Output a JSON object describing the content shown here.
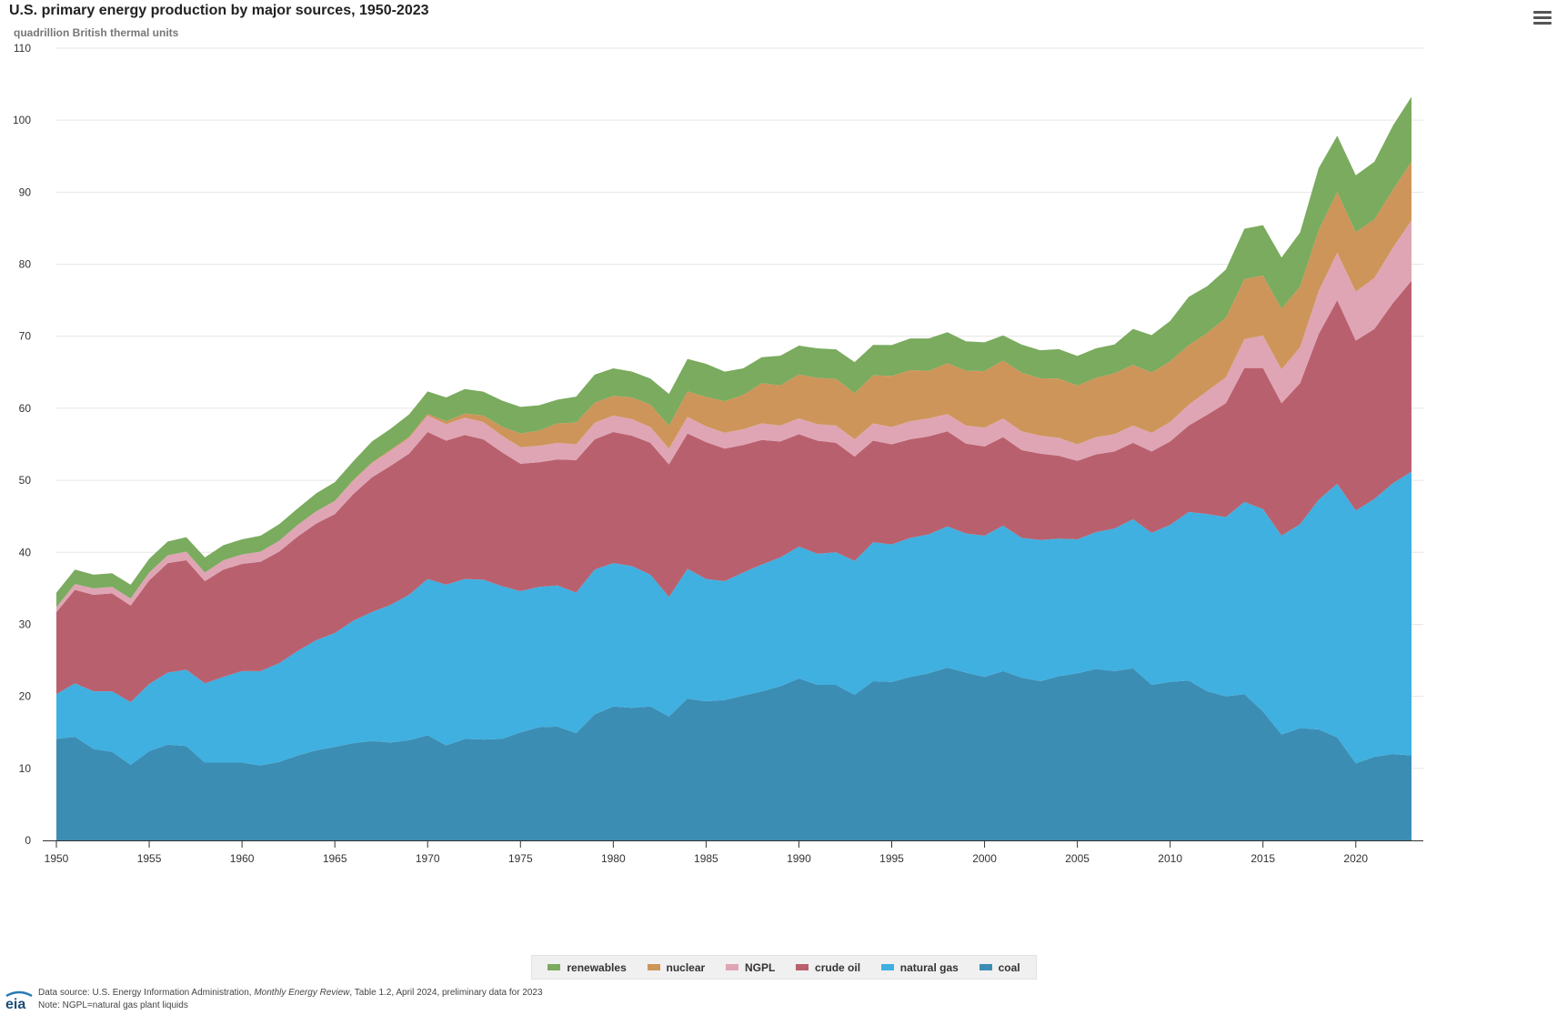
{
  "header": {
    "title": "U.S. primary energy production by major sources, 1950-2023",
    "subtitle": "quadrillion British thermal units",
    "menu_icon": "hamburger-menu-icon"
  },
  "footer": {
    "source_prefix": "Data source: U.S. Energy Information Administration, ",
    "source_italic": "Monthly Energy Review",
    "source_suffix": ", Table 1.2, April 2024, preliminary data for 2023",
    "note": "Note: NGPL=natural gas plant liquids",
    "logo_text": "eia"
  },
  "chart_data": {
    "type": "area",
    "stacked": true,
    "title": "U.S. primary energy production by major sources, 1950-2023",
    "ylabel": "quadrillion British thermal units",
    "ylim": [
      0,
      110
    ],
    "yticks": [
      0,
      10,
      20,
      30,
      40,
      50,
      60,
      70,
      80,
      90,
      100,
      110
    ],
    "xlim": [
      1950,
      2023
    ],
    "xticks": [
      1950,
      1955,
      1960,
      1965,
      1970,
      1975,
      1980,
      1985,
      1990,
      1995,
      2000,
      2005,
      2010,
      2015,
      2020
    ],
    "grid": "horizontal",
    "legend_position": "bottom-center",
    "x": [
      1950,
      1951,
      1952,
      1953,
      1954,
      1955,
      1956,
      1957,
      1958,
      1959,
      1960,
      1961,
      1962,
      1963,
      1964,
      1965,
      1966,
      1967,
      1968,
      1969,
      1970,
      1971,
      1972,
      1973,
      1974,
      1975,
      1976,
      1977,
      1978,
      1979,
      1980,
      1981,
      1982,
      1983,
      1984,
      1985,
      1986,
      1987,
      1988,
      1989,
      1990,
      1991,
      1992,
      1993,
      1994,
      1995,
      1996,
      1997,
      1998,
      1999,
      2000,
      2001,
      2002,
      2003,
      2004,
      2005,
      2006,
      2007,
      2008,
      2009,
      2010,
      2011,
      2012,
      2013,
      2014,
      2015,
      2016,
      2017,
      2018,
      2019,
      2020,
      2021,
      2022,
      2023
    ],
    "series": [
      {
        "name": "coal",
        "color": "#3c8db4",
        "values": [
          14.1,
          14.4,
          12.7,
          12.3,
          10.5,
          12.4,
          13.3,
          13.1,
          10.8,
          10.8,
          10.8,
          10.4,
          10.9,
          11.8,
          12.5,
          13.0,
          13.5,
          13.8,
          13.6,
          13.9,
          14.6,
          13.2,
          14.1,
          14.0,
          14.1,
          15.0,
          15.7,
          15.8,
          14.9,
          17.5,
          18.6,
          18.4,
          18.6,
          17.2,
          19.7,
          19.3,
          19.5,
          20.1,
          20.7,
          21.4,
          22.5,
          21.6,
          21.6,
          20.2,
          22.1,
          22.0,
          22.7,
          23.2,
          24.0,
          23.3,
          22.7,
          23.5,
          22.6,
          22.1,
          22.8,
          23.2,
          23.8,
          23.5,
          23.9,
          21.6,
          22.0,
          22.2,
          20.7,
          20.0,
          20.3,
          17.9,
          14.7,
          15.6,
          15.4,
          14.3,
          10.7,
          11.6,
          12.0,
          11.8
        ]
      },
      {
        "name": "natural gas",
        "color": "#3fb0e0",
        "values": [
          6.2,
          7.4,
          8.0,
          8.4,
          8.7,
          9.3,
          10.0,
          10.6,
          11.0,
          11.9,
          12.7,
          13.1,
          13.7,
          14.5,
          15.3,
          15.8,
          17.0,
          17.9,
          19.1,
          20.2,
          21.7,
          22.3,
          22.2,
          22.2,
          21.2,
          19.6,
          19.5,
          19.6,
          19.5,
          20.1,
          19.9,
          19.7,
          18.3,
          16.6,
          18.0,
          17.0,
          16.5,
          17.1,
          17.6,
          17.9,
          18.3,
          18.2,
          18.4,
          18.6,
          19.3,
          19.1,
          19.3,
          19.3,
          19.6,
          19.3,
          19.6,
          20.2,
          19.4,
          19.6,
          19.1,
          18.6,
          19.0,
          19.8,
          20.7,
          21.1,
          21.8,
          23.4,
          24.6,
          24.9,
          26.7,
          28.1,
          27.6,
          28.3,
          31.9,
          35.2,
          35.1,
          35.8,
          37.6,
          39.4
        ]
      },
      {
        "name": "crude oil",
        "color": "#b9606e",
        "values": [
          11.4,
          13.0,
          13.4,
          13.6,
          13.4,
          14.4,
          15.2,
          15.2,
          14.2,
          14.9,
          14.9,
          15.2,
          15.5,
          15.9,
          16.2,
          16.5,
          17.6,
          18.7,
          19.3,
          19.6,
          20.4,
          20.0,
          20.0,
          19.5,
          18.6,
          17.7,
          17.3,
          17.5,
          18.4,
          18.1,
          18.2,
          18.1,
          18.3,
          18.4,
          18.8,
          19.0,
          18.4,
          17.7,
          17.3,
          16.1,
          15.6,
          15.7,
          15.2,
          14.5,
          14.1,
          13.9,
          13.7,
          13.6,
          13.2,
          12.5,
          12.4,
          12.3,
          12.2,
          12.0,
          11.5,
          10.9,
          10.8,
          10.7,
          10.6,
          11.3,
          11.6,
          12.0,
          13.8,
          15.8,
          18.6,
          19.6,
          18.4,
          19.6,
          23.0,
          25.5,
          23.6,
          23.6,
          25.0,
          26.5
        ]
      },
      {
        "name": "NGPL",
        "color": "#dfa5b4",
        "values": [
          0.7,
          0.8,
          0.9,
          0.9,
          1.0,
          1.1,
          1.1,
          1.2,
          1.2,
          1.3,
          1.3,
          1.4,
          1.5,
          1.6,
          1.7,
          1.8,
          1.9,
          2.0,
          2.1,
          2.2,
          2.3,
          2.3,
          2.4,
          2.4,
          2.3,
          2.3,
          2.3,
          2.3,
          2.2,
          2.3,
          2.3,
          2.3,
          2.2,
          2.2,
          2.3,
          2.2,
          2.2,
          2.2,
          2.3,
          2.2,
          2.2,
          2.3,
          2.4,
          2.4,
          2.4,
          2.4,
          2.5,
          2.5,
          2.4,
          2.5,
          2.6,
          2.6,
          2.6,
          2.5,
          2.5,
          2.3,
          2.4,
          2.4,
          2.4,
          2.6,
          2.7,
          2.9,
          3.3,
          3.6,
          4.0,
          4.5,
          4.7,
          5.0,
          6.0,
          6.6,
          6.8,
          7.1,
          7.7,
          8.4
        ]
      },
      {
        "name": "nuclear",
        "color": "#cd9559",
        "values": [
          0.0,
          0.0,
          0.0,
          0.0,
          0.0,
          0.0,
          0.0,
          0.0,
          0.0,
          0.0,
          0.0,
          0.0,
          0.0,
          0.0,
          0.0,
          0.04,
          0.06,
          0.09,
          0.14,
          0.15,
          0.24,
          0.41,
          0.58,
          0.91,
          1.27,
          1.9,
          2.11,
          2.7,
          3.02,
          2.78,
          2.74,
          3.01,
          3.13,
          3.2,
          3.55,
          4.08,
          4.38,
          4.75,
          5.59,
          5.6,
          6.1,
          6.42,
          6.48,
          6.41,
          6.69,
          7.08,
          7.09,
          6.6,
          7.07,
          7.61,
          7.86,
          8.03,
          8.14,
          7.96,
          8.22,
          8.16,
          8.22,
          8.46,
          8.43,
          8.36,
          8.43,
          8.27,
          8.06,
          8.27,
          8.33,
          8.34,
          8.43,
          8.42,
          8.44,
          8.45,
          8.25,
          8.13,
          8.05,
          8.16
        ]
      },
      {
        "name": "renewables",
        "color": "#7aab5e",
        "values": [
          2.0,
          2.0,
          1.9,
          1.9,
          1.9,
          1.9,
          1.9,
          2.0,
          2.1,
          2.1,
          2.1,
          2.2,
          2.3,
          2.3,
          2.5,
          2.6,
          2.6,
          2.9,
          2.9,
          3.1,
          3.1,
          3.3,
          3.4,
          3.3,
          3.6,
          3.7,
          3.5,
          3.3,
          3.6,
          3.9,
          3.8,
          3.6,
          3.6,
          4.4,
          4.5,
          4.6,
          4.1,
          3.7,
          3.6,
          4.1,
          4.0,
          4.1,
          4.1,
          4.3,
          4.2,
          4.3,
          4.4,
          4.5,
          4.3,
          4.1,
          4.0,
          3.5,
          3.9,
          3.9,
          4.1,
          4.1,
          4.1,
          4.0,
          5.0,
          5.2,
          5.6,
          6.7,
          6.5,
          6.7,
          7.0,
          7.0,
          7.1,
          7.5,
          8.6,
          7.8,
          7.9,
          8.0,
          8.9,
          9.0
        ]
      }
    ],
    "legend_order": [
      "renewables",
      "nuclear",
      "NGPL",
      "crude oil",
      "natural gas",
      "coal"
    ]
  }
}
